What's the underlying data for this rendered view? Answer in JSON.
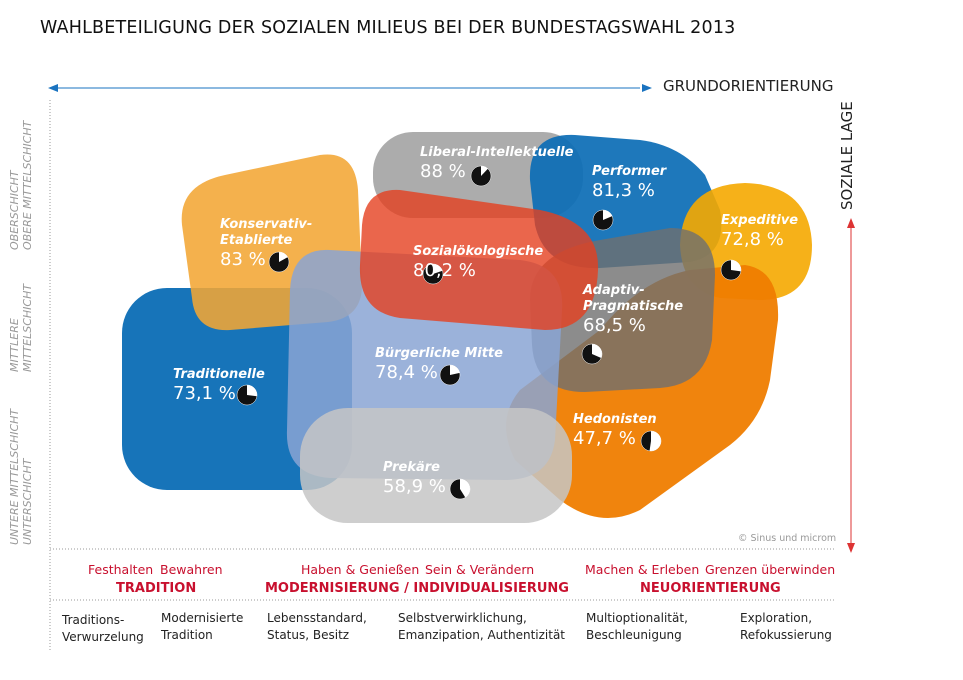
{
  "title": "WAHLBETEILIGUNG DER SOZIALEN MILIEUS BEI DER BUNDESTAGSWAHL 2013",
  "x_axis_label": "GRUNDORIENTIERUNG",
  "y_axis_label": "SOZIALE LAGE",
  "y_levels": [
    {
      "line1": "OBERSCHICHT",
      "line2": "OBERE MITTELSCHICHT"
    },
    {
      "line1": "MITTLERE",
      "line2": "MITTELSCHICHT"
    },
    {
      "line1": "UNTERE MITTELSCHICHT",
      "line2": "UNTERSCHICHT"
    }
  ],
  "milieus": [
    {
      "name": "Konservativ-Etablierte",
      "value_label": "83 %",
      "turnout": 83,
      "color": "#f2a634"
    },
    {
      "name": "Liberal-Intellektuelle",
      "value_label": "88 %",
      "turnout": 88,
      "color": "#9d9d9d"
    },
    {
      "name": "Performer",
      "value_label": "81,3 %",
      "turnout": 81.3,
      "color": "#0b6db5"
    },
    {
      "name": "Expeditive",
      "value_label": "72,8 %",
      "turnout": 72.8,
      "color": "#f5a800"
    },
    {
      "name": "Sozialökologische",
      "value_label": "80,2 %",
      "turnout": 80.2,
      "color": "#e5401f"
    },
    {
      "name": "Adaptiv-Pragmatische",
      "value_label": "68,5 %",
      "turnout": 68.5,
      "color": "#7a7a7a"
    },
    {
      "name": "Traditionelle",
      "value_label": "73,1 %",
      "turnout": 73.1,
      "color": "#0b6db5"
    },
    {
      "name": "Bürgerliche Mitte",
      "value_label": "78,4 %",
      "turnout": 78.4,
      "color": "#8aa4d4"
    },
    {
      "name": "Hedonisten",
      "value_label": "47,7 %",
      "turnout": 47.7,
      "color": "#ef7d00"
    },
    {
      "name": "Prekäre",
      "value_label": "58,9 %",
      "turnout": 58.9,
      "color": "#c6c6c6"
    }
  ],
  "copyright": "© Sinus und microm",
  "values_row": [
    "Festhalten",
    "Bewahren",
    "Haben & Genießen",
    "Sein & Verändern",
    "Machen & Erleben",
    "Grenzen überwinden"
  ],
  "groups": [
    "TRADITION",
    "MODERNISIERUNG / INDIVIDUALISIERUNG",
    "NEUORIENTIERUNG"
  ],
  "descriptions": [
    "Traditions-\nVerwurzelung",
    "Modernisierte\nTradition",
    "Lebensstandard,\nStatus, Besitz",
    "Selbstverwirklichung,\nEmanzipation, Authentizität",
    "Multioptionalität,\nBeschleunigung",
    "Exploration,\nRefokussierung"
  ],
  "colors": {
    "accent_red": "#c8102e",
    "axis_blue": "#1a73c0"
  }
}
